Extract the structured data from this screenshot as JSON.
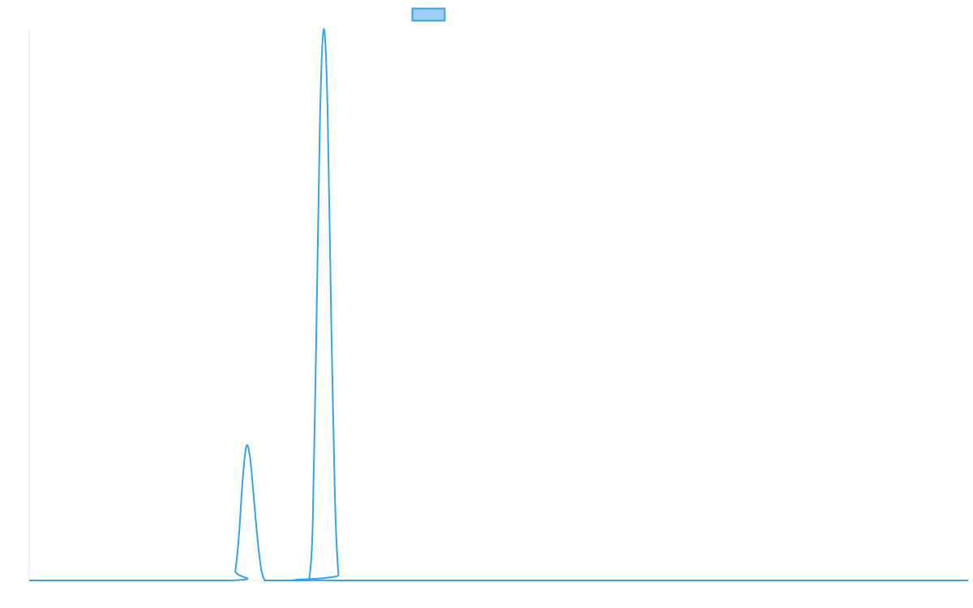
{
  "chart_data": {
    "type": "line",
    "title": "",
    "xlabel": "",
    "ylabel": "",
    "x": [
      0,
      55,
      56,
      57,
      58,
      59,
      60,
      61,
      62,
      63,
      64,
      65,
      75,
      76,
      77,
      78,
      79,
      80,
      81,
      82,
      83,
      84,
      85,
      255
    ],
    "series": [
      {
        "name": "",
        "color": "#36a2eb",
        "fill_color": "#9ad0f5",
        "values": [
          0,
          0,
          1.8,
          8.5,
          18.5,
          24.4,
          22.2,
          15.0,
          7.6,
          2.1,
          0,
          0,
          0,
          0,
          10.2,
          45.6,
          84.6,
          100.0,
          86.5,
          48.2,
          15.8,
          1.0,
          0,
          0
        ]
      }
    ],
    "xlim": [
      0,
      255
    ],
    "ylim": [
      0,
      100
    ],
    "grid": false,
    "legend": {
      "position": "top-center",
      "visible": true
    }
  }
}
